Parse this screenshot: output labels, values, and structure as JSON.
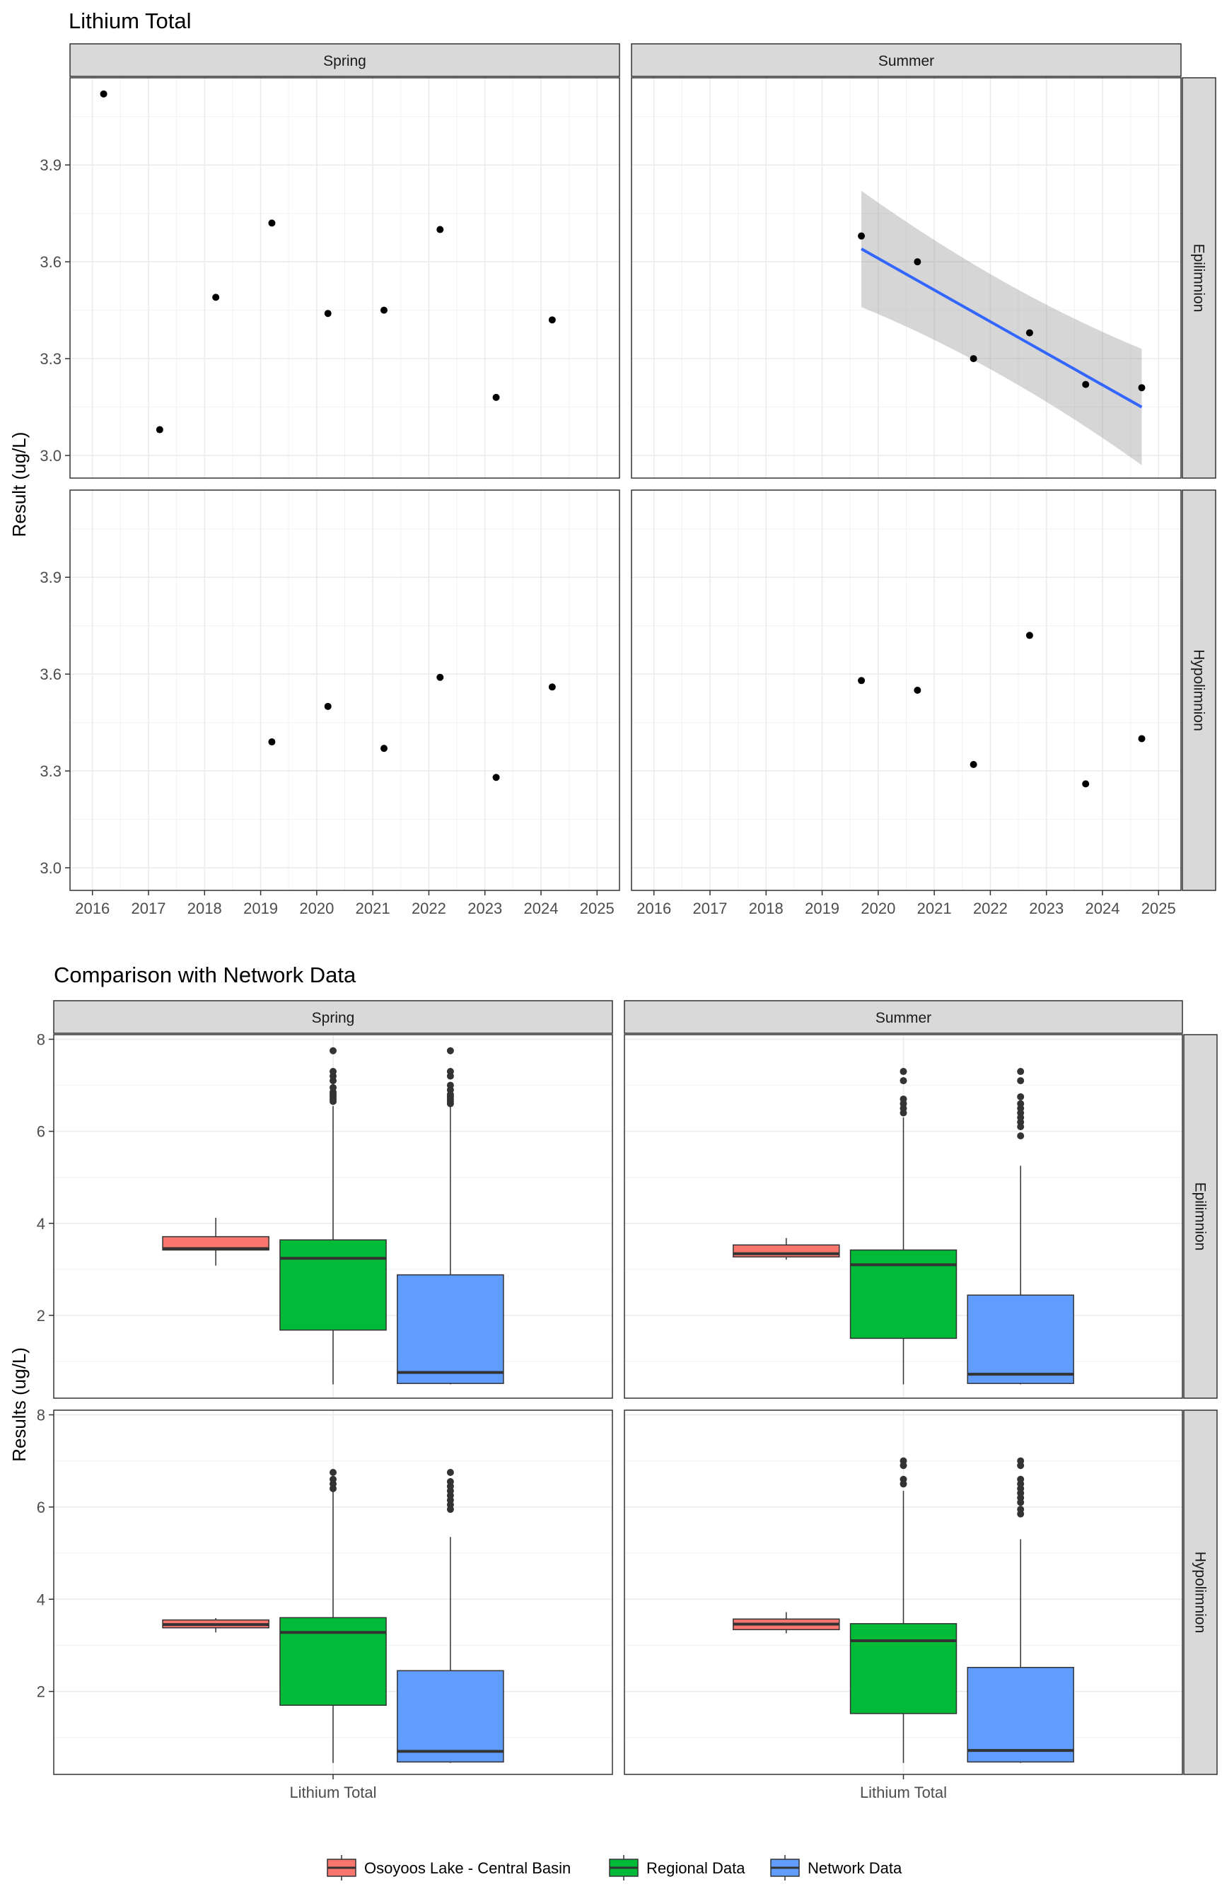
{
  "chart_data": [
    {
      "type": "scatter",
      "title": "Lithium Total",
      "ylabel": "Result (ug/L)",
      "xlabel": "",
      "columns": [
        "Spring",
        "Summer"
      ],
      "rows": [
        "Epilimnion",
        "Hypolimnion"
      ],
      "xlim": [
        2015.6,
        2025.4
      ],
      "ylim": [
        2.93,
        4.17
      ],
      "x_ticks": [
        "2016",
        "2017",
        "2018",
        "2019",
        "2020",
        "2021",
        "2022",
        "2023",
        "2024",
        "2025"
      ],
      "y_ticks": [
        "3.0",
        "3.3",
        "3.6",
        "3.9"
      ],
      "panels": [
        {
          "col": "Spring",
          "row": "Epilimnion",
          "x": [
            2016.2,
            2017.2,
            2018.2,
            2019.2,
            2020.2,
            2021.2,
            2022.2,
            2023.2,
            2024.2
          ],
          "y": [
            4.12,
            3.08,
            3.49,
            3.72,
            3.44,
            3.45,
            3.7,
            3.18,
            3.42
          ]
        },
        {
          "col": "Summer",
          "row": "Epilimnion",
          "x": [
            2019.7,
            2020.7,
            2021.7,
            2022.7,
            2023.7,
            2024.7
          ],
          "y": [
            3.68,
            3.6,
            3.3,
            3.38,
            3.22,
            3.21
          ],
          "trend": {
            "x": [
              2019.7,
              2024.7
            ],
            "y": [
              3.64,
              3.15
            ],
            "ci_lower": [
              3.46,
              2.97
            ],
            "ci_upper": [
              3.82,
              3.33
            ],
            "color": "#3366ff"
          }
        },
        {
          "col": "Spring",
          "row": "Hypolimnion",
          "x": [
            2019.2,
            2020.2,
            2021.2,
            2022.2,
            2023.2,
            2024.2
          ],
          "y": [
            3.39,
            3.5,
            3.37,
            3.59,
            3.28,
            3.56
          ]
        },
        {
          "col": "Summer",
          "row": "Hypolimnion",
          "x": [
            2019.7,
            2020.7,
            2021.7,
            2022.7,
            2023.7,
            2024.7
          ],
          "y": [
            3.58,
            3.55,
            3.32,
            3.72,
            3.26,
            3.4
          ]
        }
      ]
    },
    {
      "type": "boxplot",
      "title": "Comparison with Network Data",
      "ylabel": "Results (ug/L)",
      "xlabel": "",
      "category": "Lithium Total",
      "columns": [
        "Spring",
        "Summer"
      ],
      "rows": [
        "Epilimnion",
        "Hypolimnion"
      ],
      "ylim": [
        0.2,
        8.1
      ],
      "y_ticks": [
        "2",
        "4",
        "6",
        "8"
      ],
      "legend": {
        "position": "bottom",
        "items": [
          {
            "name": "Osoyoos Lake - Central Basin",
            "color": "#f8766d"
          },
          {
            "name": "Regional Data",
            "color": "#00ba38"
          },
          {
            "name": "Network Data",
            "color": "#619cff"
          }
        ]
      },
      "panels": [
        {
          "col": "Spring",
          "row": "Epilimnion",
          "boxes": [
            {
              "series": "Osoyoos Lake - Central Basin",
              "min": 3.08,
              "q1": 3.42,
              "median": 3.45,
              "q3": 3.71,
              "max": 4.12,
              "outliers": []
            },
            {
              "series": "Regional Data",
              "min": 0.5,
              "q1": 1.68,
              "median": 3.24,
              "q3": 3.64,
              "max": 6.55,
              "outliers": [
                6.65,
                6.7,
                6.75,
                6.8,
                6.85,
                6.95,
                7.1,
                7.2,
                7.3,
                7.75
              ]
            },
            {
              "series": "Network Data",
              "min": 0.5,
              "q1": 0.52,
              "median": 0.76,
              "q3": 2.88,
              "max": 6.55,
              "outliers": [
                6.6,
                6.65,
                6.7,
                6.75,
                6.8,
                6.9,
                7.0,
                7.2,
                7.3,
                7.75
              ]
            }
          ]
        },
        {
          "col": "Summer",
          "row": "Epilimnion",
          "boxes": [
            {
              "series": "Osoyoos Lake - Central Basin",
              "min": 3.21,
              "q1": 3.27,
              "median": 3.34,
              "q3": 3.53,
              "max": 3.68,
              "outliers": []
            },
            {
              "series": "Regional Data",
              "min": 0.5,
              "q1": 1.5,
              "median": 3.1,
              "q3": 3.42,
              "max": 6.3,
              "outliers": [
                6.4,
                6.5,
                6.6,
                6.7,
                7.1,
                7.3
              ]
            },
            {
              "series": "Network Data",
              "min": 0.5,
              "q1": 0.52,
              "median": 0.72,
              "q3": 2.44,
              "max": 5.25,
              "outliers": [
                5.9,
                6.1,
                6.2,
                6.3,
                6.4,
                6.5,
                6.6,
                6.75,
                7.1,
                7.3
              ]
            }
          ]
        },
        {
          "col": "Spring",
          "row": "Hypolimnion",
          "boxes": [
            {
              "series": "Osoyoos Lake - Central Basin",
              "min": 3.28,
              "q1": 3.38,
              "median": 3.45,
              "q3": 3.55,
              "max": 3.59,
              "outliers": []
            },
            {
              "series": "Regional Data",
              "min": 0.45,
              "q1": 1.7,
              "median": 3.28,
              "q3": 3.6,
              "max": 6.35,
              "outliers": [
                6.4,
                6.5,
                6.6,
                6.75
              ]
            },
            {
              "series": "Network Data",
              "min": 0.45,
              "q1": 0.47,
              "median": 0.7,
              "q3": 2.45,
              "max": 5.35,
              "outliers": [
                5.95,
                6.05,
                6.15,
                6.25,
                6.35,
                6.45,
                6.55,
                6.75
              ]
            }
          ]
        },
        {
          "col": "Summer",
          "row": "Hypolimnion",
          "boxes": [
            {
              "series": "Osoyoos Lake - Central Basin",
              "min": 3.26,
              "q1": 3.34,
              "median": 3.46,
              "q3": 3.57,
              "max": 3.72,
              "outliers": []
            },
            {
              "series": "Regional Data",
              "min": 0.45,
              "q1": 1.52,
              "median": 3.1,
              "q3": 3.47,
              "max": 6.35,
              "outliers": [
                6.5,
                6.6,
                6.9,
                7.0
              ]
            },
            {
              "series": "Network Data",
              "min": 0.45,
              "q1": 0.47,
              "median": 0.72,
              "q3": 2.52,
              "max": 5.3,
              "outliers": [
                5.85,
                5.95,
                6.1,
                6.2,
                6.3,
                6.4,
                6.5,
                6.6,
                6.9,
                7.0
              ]
            }
          ]
        }
      ]
    }
  ]
}
